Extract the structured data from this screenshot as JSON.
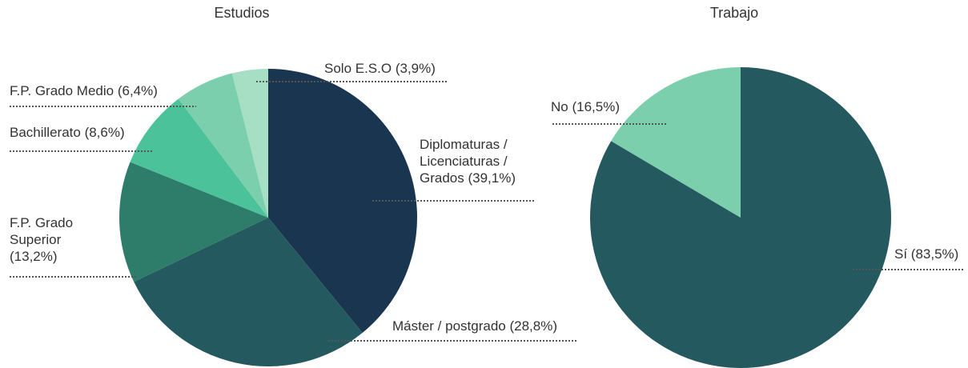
{
  "chart_data": [
    {
      "type": "pie",
      "title": "Estudios",
      "categories": [
        "Diplomaturas / Licenciaturas / Grados",
        "Máster / postgrado",
        "F.P. Grado Superior",
        "Bachillerato",
        "F.P. Grado Medio",
        "Solo E.S.O"
      ],
      "values": [
        39.1,
        28.8,
        13.2,
        8.6,
        6.4,
        3.9
      ],
      "value_labels": [
        "(39,1%)",
        "(28,8%)",
        "(13,2%)",
        "(8,6%)",
        "(6,4%)",
        "(3,9%)"
      ],
      "colors": [
        "#1a354f",
        "#245a5f",
        "#2e7d6a",
        "#4cc29a",
        "#7bcfac",
        "#a6dfc4"
      ]
    },
    {
      "type": "pie",
      "title": "Trabajo",
      "categories": [
        "Sí",
        "No"
      ],
      "values": [
        83.5,
        16.5
      ],
      "value_labels": [
        "(83,5%)",
        "(16,5%)"
      ],
      "colors": [
        "#245a5f",
        "#7bcfac"
      ]
    }
  ]
}
